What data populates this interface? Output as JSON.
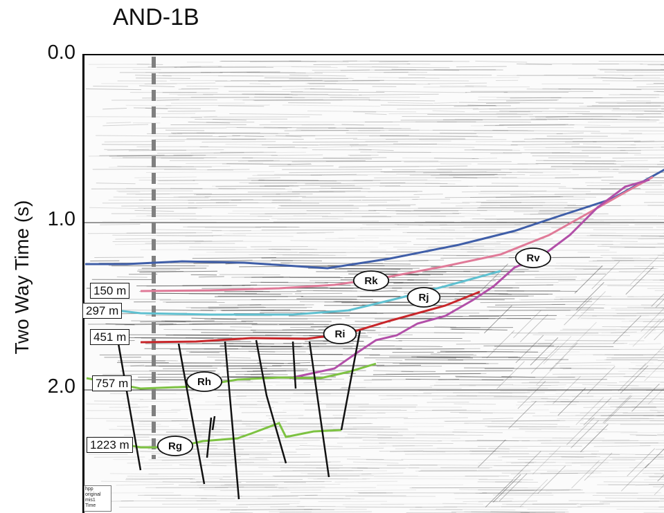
{
  "title": "AND-1B",
  "y_axis": {
    "label": "Two Way Time (s)",
    "ticks": [
      "0.0",
      "1.0",
      "2.0"
    ]
  },
  "depth_labels": [
    "150 m",
    "297 m",
    "451 m",
    "757 m",
    "1223 m"
  ],
  "horizons": [
    {
      "label": "",
      "color": "#3f5ea8"
    },
    {
      "label": "Rk",
      "color": "#e07a98"
    },
    {
      "label": "Rj",
      "color": "#5fc0d0"
    },
    {
      "label": "Ri",
      "color": "#c8262a"
    },
    {
      "label": "Rv",
      "color": "#b24fa8"
    },
    {
      "label": "Rh",
      "color": "#7dc242"
    },
    {
      "label": "Rg",
      "color": "#7dc242"
    }
  ],
  "borehole_line_color": "#808080",
  "corner_note": [
    "hpp",
    "original",
    "mis1",
    "Time"
  ]
}
